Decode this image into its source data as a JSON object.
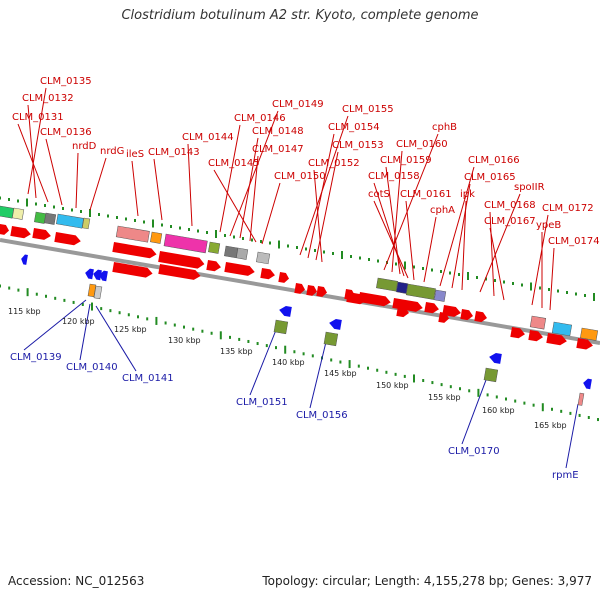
{
  "title": "Clostridium botulinum A2 str. Kyoto, complete genome",
  "footer": {
    "accession": "Accession: NC_012563",
    "stats": "Topology: circular; Length: 4,155,278 bp; Genes: 3,977"
  },
  "colors": {
    "forward_gene": "#ee0000",
    "reverse_gene": "#1111ee",
    "forward_label": "#cc0000",
    "reverse_label": "#1a1aa6",
    "dna_line": "#999999",
    "tick": "#228b22"
  },
  "scale_labels": [
    "115 kbp",
    "120 kbp",
    "125 kbp",
    "130 kbp",
    "135 kbp",
    "140 kbp",
    "145 kbp",
    "150 kbp",
    "155 kbp",
    "160 kbp",
    "165 kbp"
  ],
  "forward_labels": [
    "CLM_0135",
    "CLM_0132",
    "CLM_0131",
    "CLM_0136",
    "nrdD",
    "nrdG",
    "ileS",
    "CLM_0143",
    "CLM_0144",
    "CLM_0146",
    "CLM_0149",
    "CLM_0148",
    "CLM_0147",
    "CLM_0145",
    "CLM_0150",
    "CLM_0155",
    "CLM_0154",
    "CLM_0153",
    "CLM_0152",
    "cphB",
    "CLM_0160",
    "CLM_0159",
    "CLM_0158",
    "cotS",
    "CLM_0161",
    "cphA",
    "CLM_0166",
    "CLM_0165",
    "ipk",
    "spoIIR",
    "CLM_0168",
    "CLM_0167",
    "CLM_0172",
    "ypeB",
    "CLM_0174"
  ],
  "reverse_labels": [
    "CLM_0139",
    "CLM_0140",
    "CLM_0141",
    "CLM_0151",
    "CLM_0156",
    "CLM_0170",
    "rpmE"
  ]
}
